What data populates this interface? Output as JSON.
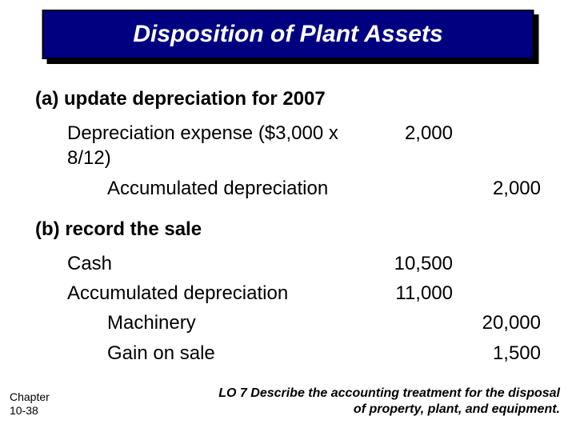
{
  "title": "Disposition of Plant Assets",
  "section_a": {
    "heading": "(a) update depreciation for 2007",
    "rows": [
      {
        "label": "Depreciation expense ($3,000 x 8/12)",
        "debit": "2,000",
        "credit": "",
        "indent": 1
      },
      {
        "label": "Accumulated depreciation",
        "debit": "",
        "credit": "2,000",
        "indent": 2
      }
    ]
  },
  "section_b": {
    "heading": "(b) record the sale",
    "rows": [
      {
        "label": "Cash",
        "debit": "10,500",
        "credit": "",
        "indent": 1
      },
      {
        "label": "Accumulated depreciation",
        "debit": "11,000",
        "credit": "",
        "indent": 1
      },
      {
        "label": "Machinery",
        "debit": "",
        "credit": "20,000",
        "indent": 2
      },
      {
        "label": "Gain on sale",
        "debit": "",
        "credit": "1,500",
        "indent": 2
      }
    ]
  },
  "chapter_ref": {
    "line1": "Chapter",
    "line2": "10-38"
  },
  "learning_objective": "LO 7 Describe the accounting treatment for the disposal of property, plant, and equipment.",
  "colors": {
    "title_bg": "#000080",
    "title_text": "#ffffff",
    "body_text": "#000000",
    "slide_bg": "#ffffff"
  },
  "fonts": {
    "family": "Comic Sans MS",
    "title_size_pt": 30,
    "body_size_pt": 24,
    "footer_size_pt": 14,
    "lo_size_pt": 16
  }
}
